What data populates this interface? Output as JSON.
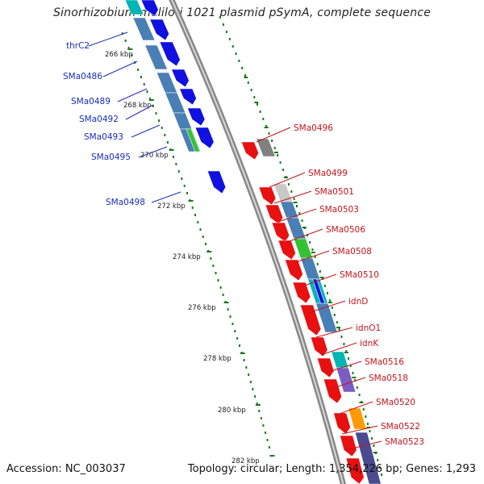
{
  "title": "Sinorhizobium meliloti 1021 plasmid pSymA, complete sequence",
  "footer": {
    "accession": "Accession: NC_003037",
    "summary": "Topology: circular; Length: 1,354,226 bp; Genes: 1,293"
  },
  "ticks": [
    "266 kbp",
    "268 kbp",
    "270 kbp",
    "272 kbp",
    "274 kbp",
    "276 kbp",
    "278 kbp",
    "280 kbp",
    "282 kbp"
  ],
  "labels_left": [
    "thrC2",
    "SMa0486",
    "SMa0489",
    "SMa0492",
    "SMa0493",
    "SMa0495",
    "SMa0498"
  ],
  "labels_right": [
    "SMa0496",
    "SMa0499",
    "SMa0501",
    "SMa0503",
    "SMa0506",
    "SMa0508",
    "SMa0510",
    "idnD",
    "idnO1",
    "idnK",
    "SMa0516",
    "SMa0518",
    "SMa0520",
    "SMa0522",
    "SMa0523"
  ],
  "colors": {
    "forward_strand": "#1010e0",
    "reverse_strand": "#e81010",
    "cog_steel": "#4a7fb5",
    "cog_green": "#33c033",
    "cog_cyan": "#00b5b5",
    "cog_orange": "#ff9a00",
    "cog_purple": "#7a5cc4",
    "cog_gray": "#808080",
    "backbone": "#888888",
    "gc_dots": "#1a7a1a"
  }
}
